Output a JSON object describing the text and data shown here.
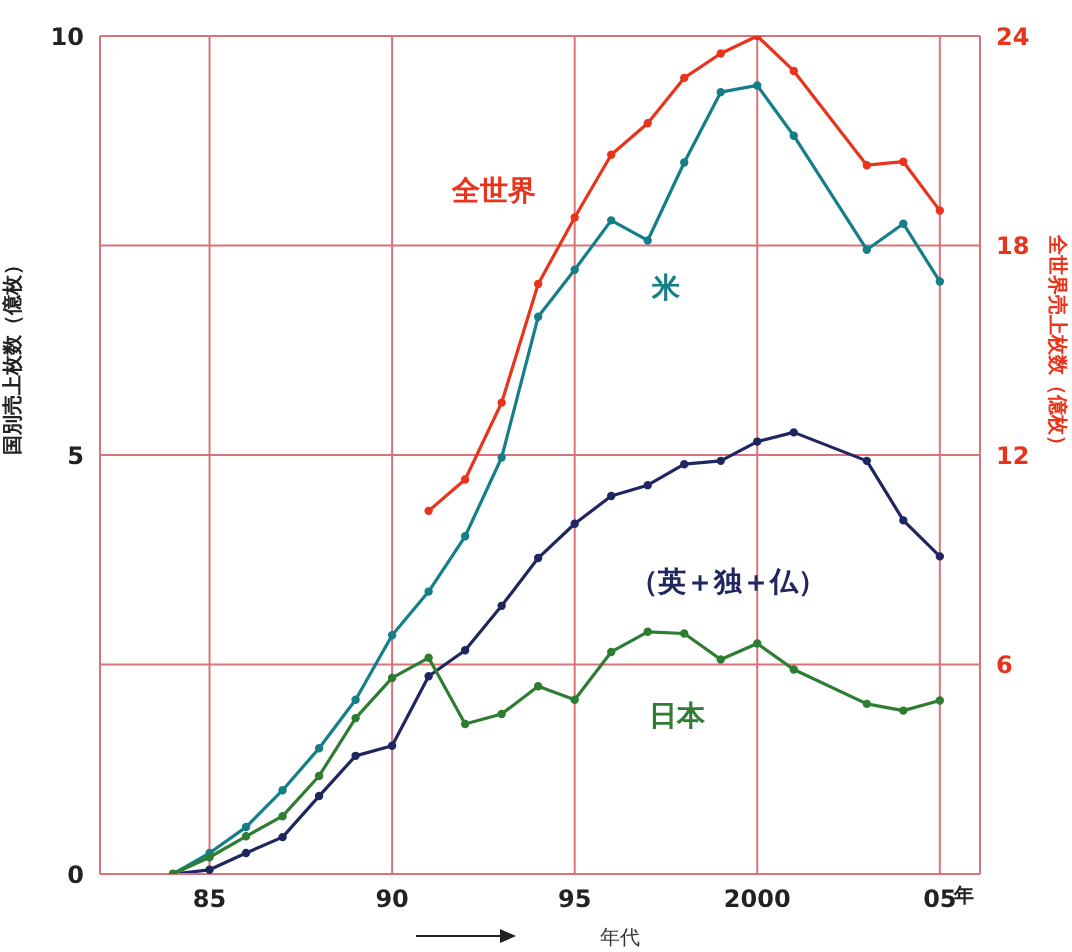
{
  "chart_data": {
    "type": "line",
    "xlabel": "年代",
    "ylabel": "国別売上枚数（億枚）",
    "y2label": "全世界売上枚数（億枚）",
    "xlim": [
      1982,
      2006.1
    ],
    "xticks": [
      {
        "value": 1985,
        "label": "85"
      },
      {
        "value": 1990,
        "label": "90"
      },
      {
        "value": 1995,
        "label": "95"
      },
      2000,
      {
        "value": 2005,
        "label": "05"
      }
    ],
    "ylim": [
      0,
      10
    ],
    "yticks": [
      0,
      5,
      10
    ],
    "y2lim": [
      0,
      24
    ],
    "y2ticks": [
      6,
      12,
      18,
      24
    ],
    "annotations": [
      "年"
    ],
    "grid": true,
    "legend": false,
    "marker": "circle",
    "line_style": "solid",
    "series": [
      {
        "name": "全世界",
        "color": "#e8341c",
        "axis": "y2",
        "x": [
          1991,
          1992,
          1993,
          1994,
          1995,
          1996,
          1997,
          1998,
          1999,
          2000,
          2001,
          2003,
          2004,
          2005
        ],
        "values": [
          10.4,
          11.3,
          13.5,
          16.9,
          18.8,
          20.6,
          21.5,
          22.8,
          23.5,
          24.0,
          23.0,
          20.3,
          20.4,
          19.0
        ]
      },
      {
        "name": "米",
        "color": "#147f86",
        "x": [
          1984,
          1985,
          1986,
          1987,
          1988,
          1989,
          1990,
          1991,
          1992,
          1993,
          1994,
          1995,
          1996,
          1997,
          1998,
          1999,
          2000,
          2001,
          2003,
          2004,
          2005
        ],
        "values": [
          0,
          0.25,
          0.56,
          1.0,
          1.5,
          2.08,
          2.85,
          3.37,
          4.03,
          4.97,
          6.65,
          7.21,
          7.8,
          7.56,
          8.49,
          9.33,
          9.41,
          8.81,
          7.45,
          7.76,
          7.07
        ]
      },
      {
        "name": "（英＋独＋仏）",
        "color": "#1f2660",
        "x": [
          1984,
          1985,
          1986,
          1987,
          1988,
          1989,
          1990,
          1991,
          1992,
          1993,
          1994,
          1995,
          1996,
          1997,
          1998,
          1999,
          2000,
          2001,
          2003,
          2004,
          2005
        ],
        "values": [
          0,
          0.05,
          0.25,
          0.44,
          0.93,
          1.41,
          1.53,
          2.36,
          2.67,
          3.2,
          3.77,
          4.18,
          4.51,
          4.64,
          4.89,
          4.93,
          5.16,
          5.27,
          4.93,
          4.22,
          3.79
        ]
      },
      {
        "name": "日本",
        "color": "#2e7d32",
        "x": [
          1984,
          1985,
          1986,
          1987,
          1988,
          1989,
          1990,
          1991,
          1992,
          1993,
          1994,
          1995,
          1996,
          1997,
          1998,
          1999,
          2000,
          2001,
          2003,
          2004,
          2005
        ],
        "values": [
          0,
          0.2,
          0.45,
          0.69,
          1.17,
          1.86,
          2.34,
          2.58,
          1.79,
          1.91,
          2.24,
          2.08,
          2.65,
          2.89,
          2.87,
          2.56,
          2.75,
          2.44,
          2.03,
          1.95,
          2.07
        ]
      }
    ]
  }
}
